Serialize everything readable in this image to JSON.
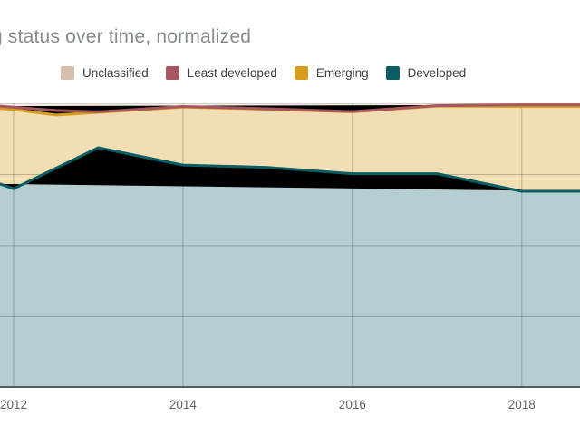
{
  "title": {
    "text": "g status over time, normalized"
  },
  "legend": {
    "items": [
      {
        "label": "Unclassified",
        "color": "#d5bfac"
      },
      {
        "label": "Least developed",
        "color": "#a5565f"
      },
      {
        "label": "Emerging",
        "color": "#d69c1e"
      },
      {
        "label": "Developed",
        "color": "#0b5d63"
      }
    ]
  },
  "x_axis": {
    "ticks": [
      "2012",
      "2014",
      "2016",
      "2018"
    ]
  },
  "chart_data": {
    "type": "area",
    "stacked": true,
    "normalized": true,
    "title": "g status over time, normalized",
    "xlabel": "",
    "ylabel": "",
    "ylim": [
      0,
      100
    ],
    "x_tick_years": [
      2012,
      2014,
      2016,
      2018
    ],
    "x_visible_range_years": [
      2011.84,
      2018.69
    ],
    "grid_percents": [
      25,
      50,
      75
    ],
    "grid_on": true,
    "legend_position": "top",
    "series_note": "bottom-to-top stacking; points are [year, cumulative stack-top percent]",
    "series": [
      {
        "name": "Developed",
        "line_color": "#0b5d63",
        "fill_color": "#b5ced2",
        "points": [
          [
            2011.84,
            71.7
          ],
          [
            2012,
            70.0
          ],
          [
            2013,
            84.4
          ],
          [
            2014,
            78.3
          ],
          [
            2015,
            77.5
          ],
          [
            2016,
            75.3
          ],
          [
            2017,
            75.3
          ],
          [
            2018,
            69.1
          ],
          [
            2018.69,
            69.1
          ]
        ]
      },
      {
        "name": "Emerging",
        "line_color": "#d69c1e",
        "fill_color": "#f2deb5",
        "points": [
          [
            2011.84,
            98.2
          ],
          [
            2012,
            97.8
          ],
          [
            2012.5,
            95.9
          ],
          [
            2013,
            96.8
          ],
          [
            2014,
            98.7
          ],
          [
            2015,
            97.9
          ],
          [
            2016,
            97.0
          ],
          [
            2017,
            99.0
          ],
          [
            2018,
            98.9
          ],
          [
            2018.69,
            98.9
          ]
        ]
      },
      {
        "name": "Least developed",
        "line_color": "#a5565f",
        "fill_color": "#e7d0d3",
        "points": [
          [
            2011.84,
            99.0
          ],
          [
            2012,
            98.6
          ],
          [
            2012.5,
            97.5
          ],
          [
            2013,
            97.0
          ],
          [
            2014,
            98.9
          ],
          [
            2015,
            98.1
          ],
          [
            2016,
            97.1
          ],
          [
            2017,
            99.2
          ],
          [
            2018,
            99.5
          ],
          [
            2018.69,
            99.5
          ]
        ]
      },
      {
        "name": "Unclassified",
        "line_color": "#d5bfac",
        "fill_color": "#f2ece5",
        "no_stroke": true,
        "points": [
          [
            2011.84,
            100
          ],
          [
            2018.69,
            100
          ]
        ]
      }
    ],
    "style": {
      "grid_color": "rgba(0,0,0,0.22)",
      "top_line_color": "rgba(0,0,0,0.12)",
      "axis_line_color": "#555c5e",
      "line_width": 3
    }
  }
}
